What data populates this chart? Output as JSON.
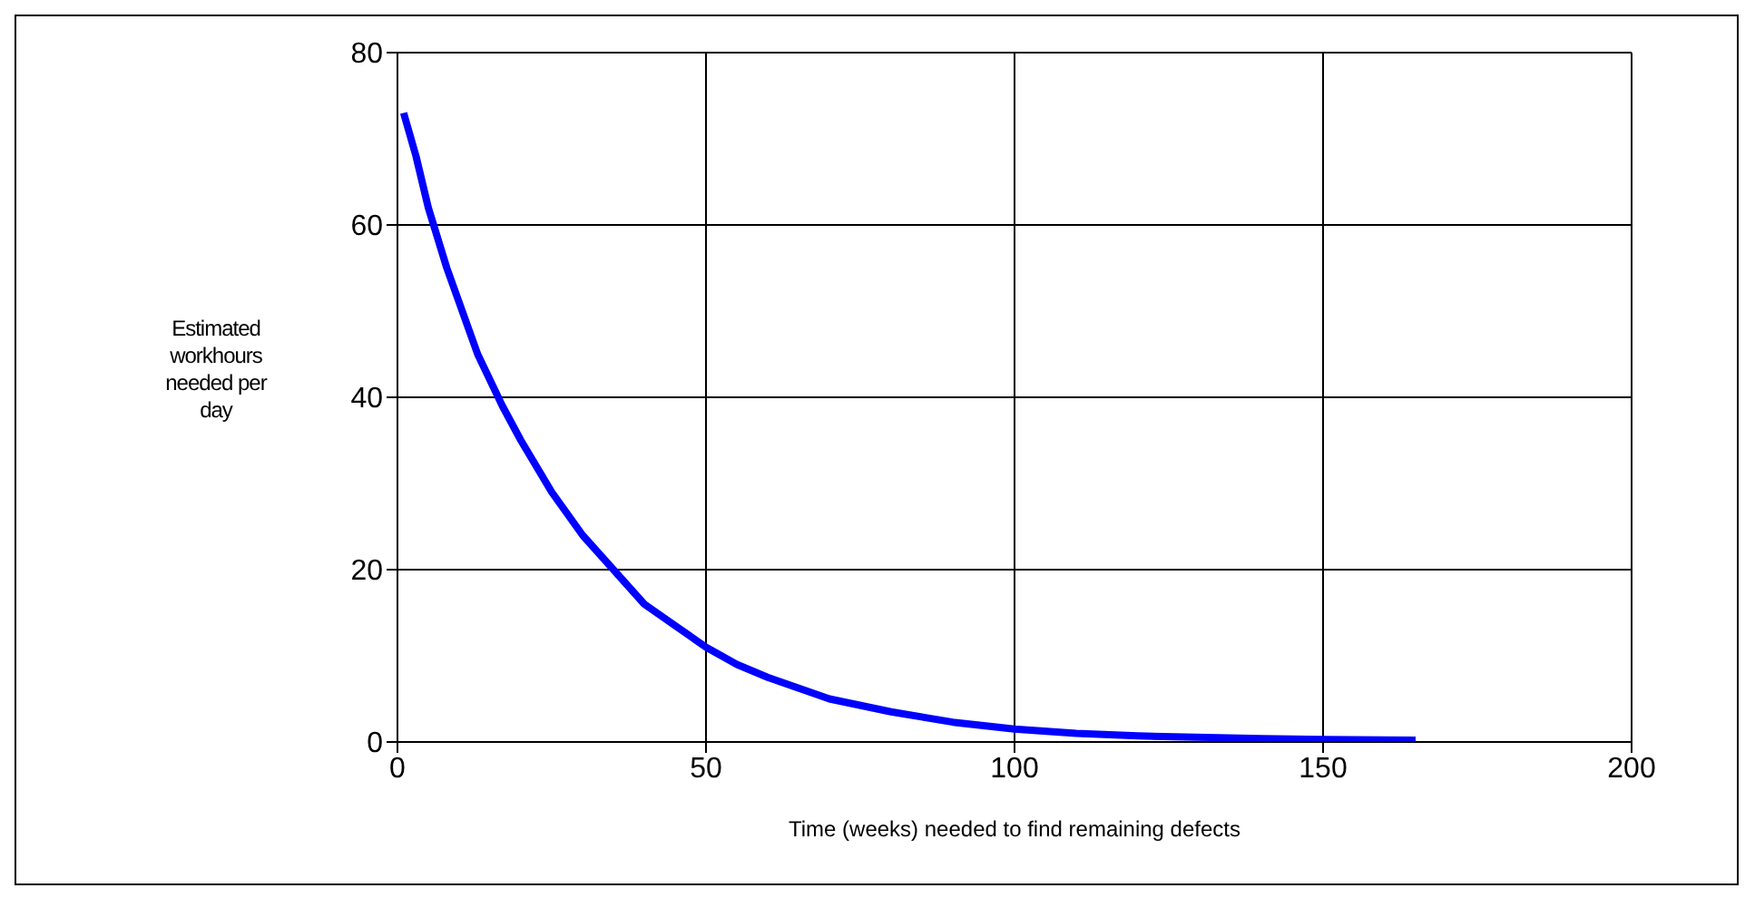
{
  "chart_data": {
    "type": "line",
    "xlabel": "Time (weeks) needed to find remaining defects",
    "ylabel": "Estimated workhours needed per day",
    "series": [
      {
        "color": "#0000ff",
        "x": [
          1,
          3,
          5,
          8,
          10,
          13,
          17,
          20,
          25,
          30,
          35,
          40,
          45,
          50,
          55,
          60,
          70,
          80,
          90,
          100,
          110,
          120,
          140,
          150,
          165
        ],
        "values": [
          73,
          68,
          62,
          55,
          51,
          45,
          39,
          35,
          29,
          24,
          20,
          16,
          13.5,
          11,
          9,
          7.5,
          5,
          3.5,
          2.3,
          1.5,
          1,
          0.7,
          0.4,
          0.3,
          0.2
        ]
      }
    ],
    "xlim": [
      0,
      200
    ],
    "xticks": [
      0,
      50,
      100,
      150,
      200
    ],
    "ylim": [
      0,
      80
    ],
    "yticks": [
      0,
      20,
      40,
      60,
      80
    ],
    "grid": true,
    "marker": "none",
    "line_style": "solid"
  }
}
